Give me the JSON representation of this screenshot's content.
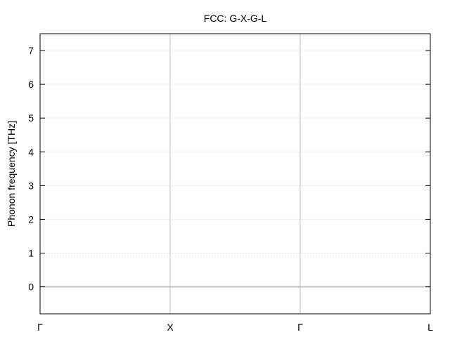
{
  "chart_data": {
    "type": "line",
    "title": "FCC: G-X-G-L",
    "xlabel": "",
    "ylabel": "Phonon frequency [THz]",
    "ylim": [
      -0.8,
      7.5
    ],
    "yticks": [
      0,
      1,
      2,
      3,
      4,
      5,
      6,
      7
    ],
    "xlim": [
      0,
      3
    ],
    "xticks": [
      {
        "x": 0,
        "label": "Γ"
      },
      {
        "x": 1,
        "label": "X"
      },
      {
        "x": 2,
        "label": "Γ"
      },
      {
        "x": 3,
        "label": "L"
      }
    ],
    "grid": true,
    "series": [
      {
        "x": [
          0,
          3
        ],
        "y": [
          0,
          0
        ],
        "color": "#bebebe"
      }
    ]
  }
}
